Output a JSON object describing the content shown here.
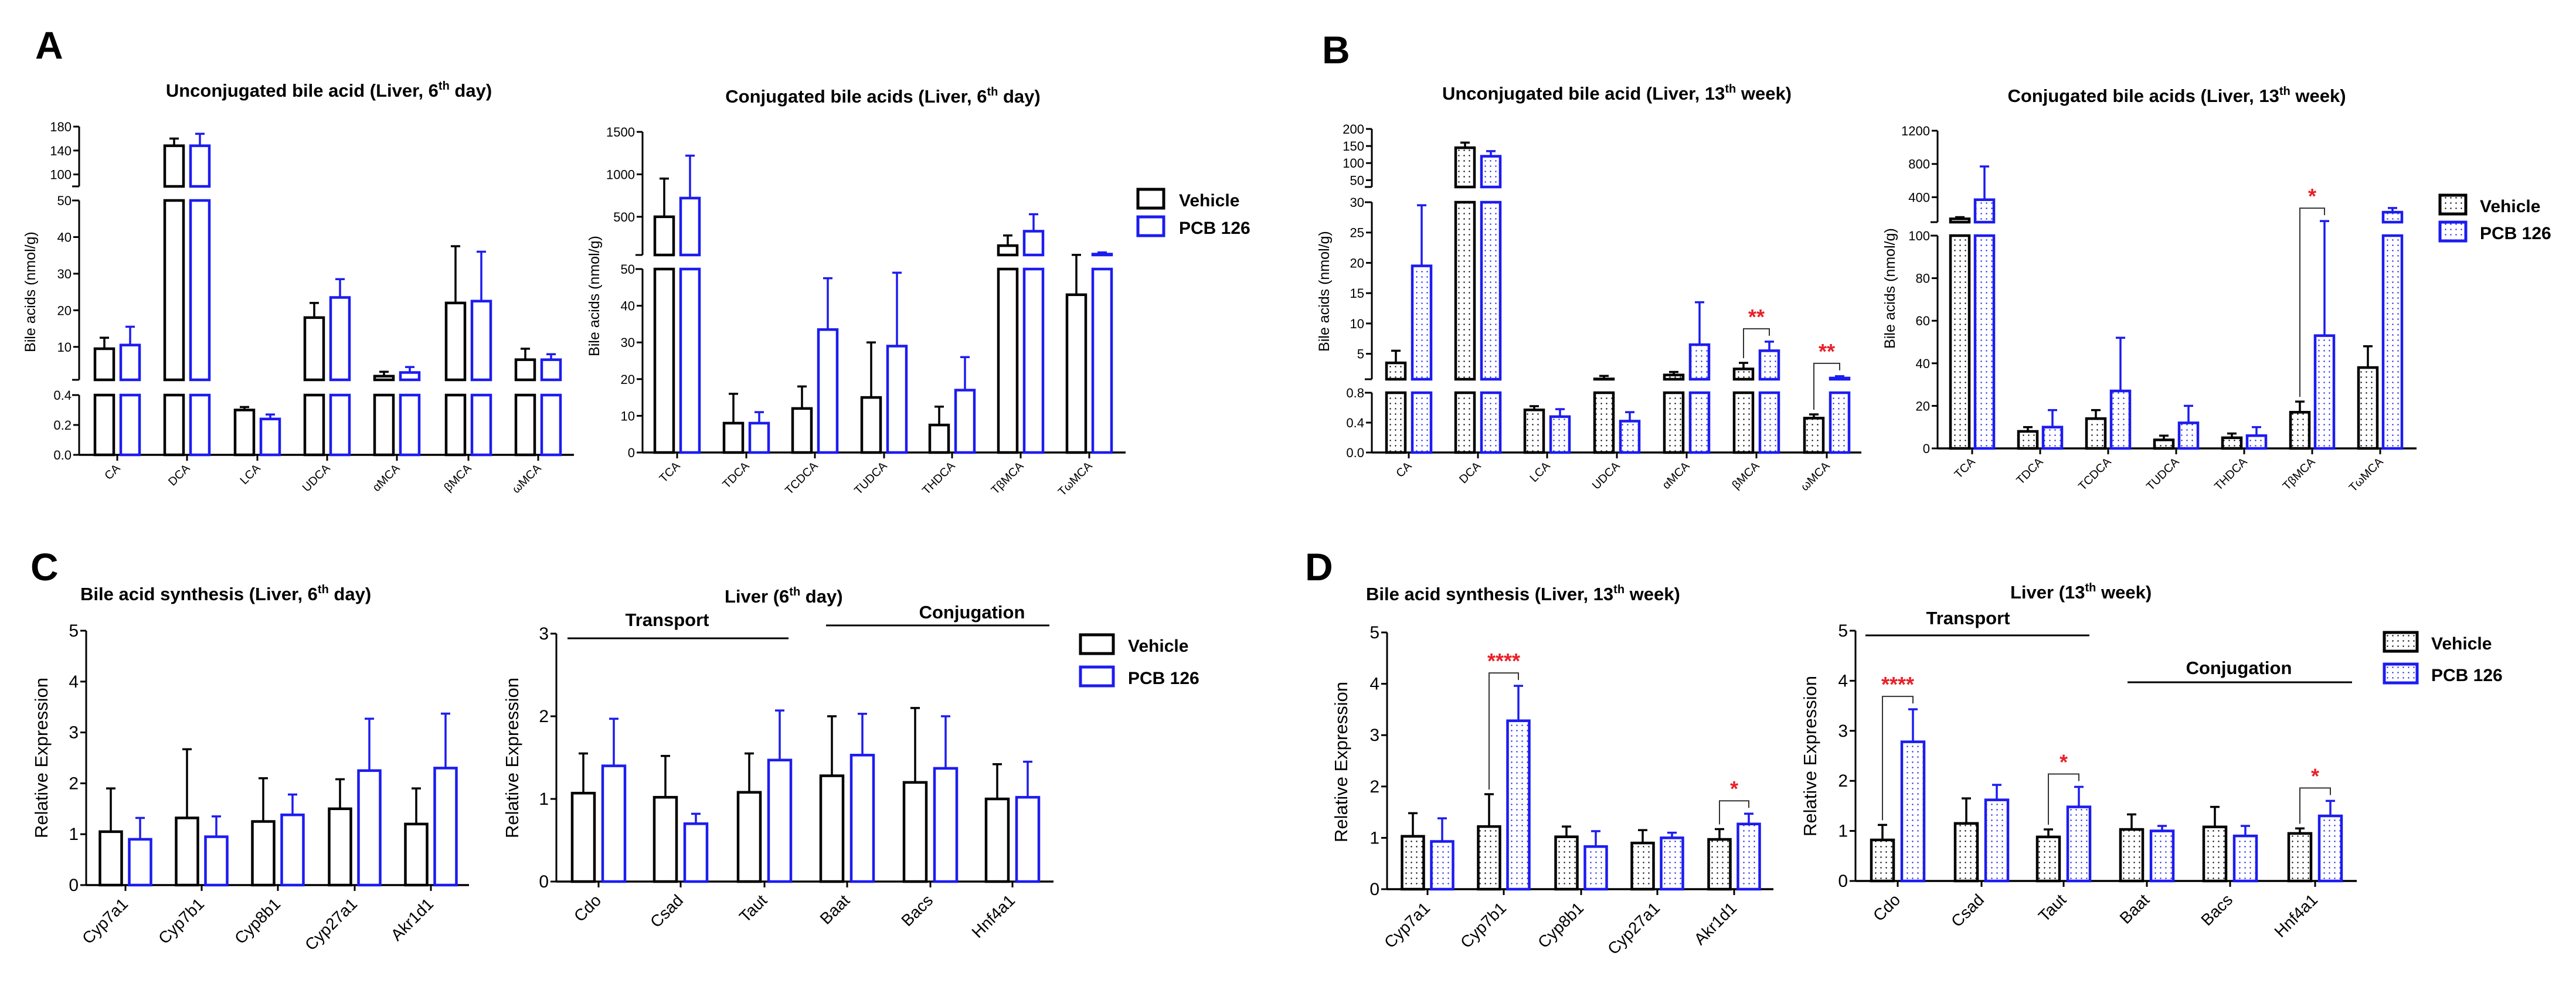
{
  "panel_letters": [
    "A",
    "B",
    "C",
    "D"
  ],
  "colors": {
    "vehicle": "#000000",
    "pcb": "#1c1cf0",
    "significance": "#e8202a"
  },
  "legend": [
    "Vehicle",
    "PCB 126"
  ],
  "chart_data": [
    {
      "id": "A1",
      "type": "bar",
      "panel": "A",
      "title": {
        "pre": "Unconjugated bile acid (Liver, 6",
        "sup": "th",
        "post": " day)"
      },
      "ylabel": "Bile acids (nmol/g)",
      "categories": [
        "CA",
        "DCA",
        "LCA",
        "UDCA",
        "αMCA",
        "βMCA",
        "ωMCA"
      ],
      "series": [
        {
          "name": "Vehicle",
          "mean": [
            9.5,
            148,
            0.3,
            18,
            2,
            22,
            6.5
          ],
          "sd": [
            3,
            12,
            0.02,
            4,
            1.2,
            15.5,
            3
          ]
        },
        {
          "name": "PCB 126",
          "mean": [
            10.5,
            148,
            0.24,
            23.5,
            3,
            22.5,
            6.5
          ],
          "sd": [
            5,
            20,
            0.03,
            5,
            1.5,
            13.5,
            1.5
          ]
        }
      ],
      "y_segments": [
        {
          "range": [
            0,
            0.4
          ],
          "ticks": [
            "0.0",
            "0.2",
            "0.4"
          ]
        },
        {
          "range": [
            1,
            50
          ],
          "ticks": [
            "10",
            "20",
            "30",
            "40",
            "50"
          ]
        },
        {
          "range": [
            80,
            180
          ],
          "ticks": [
            "100",
            "140",
            "180"
          ]
        }
      ],
      "pattern": "none",
      "legend": false,
      "significance": []
    },
    {
      "id": "A2",
      "type": "bar",
      "panel": "A",
      "title": {
        "pre": "Conjugated bile acids (Liver, 6",
        "sup": "th",
        "post": " day)"
      },
      "ylabel": "Bile acids (nmol/g)",
      "categories": [
        "TCA",
        "TDCA",
        "TCDCA",
        "TUDCA",
        "THDCA",
        "TβMCA",
        "TωMCA"
      ],
      "series": [
        {
          "name": "Vehicle",
          "mean": [
            500,
            8,
            12,
            15,
            7.5,
            160,
            43
          ],
          "sd": [
            450,
            8,
            6,
            15,
            5,
            120,
            8
          ]
        },
        {
          "name": "PCB 126",
          "mean": [
            720,
            8,
            33.5,
            29,
            17,
            330,
            60
          ],
          "sd": [
            500,
            3,
            14,
            20,
            9,
            200,
            20
          ]
        }
      ],
      "y_segments": [
        {
          "range": [
            0,
            50
          ],
          "ticks": [
            "0",
            "10",
            "20",
            "30",
            "40",
            "50"
          ]
        },
        {
          "range": [
            50,
            1500
          ],
          "ticks": [
            "500",
            "1000",
            "1500"
          ]
        }
      ],
      "pattern": "none",
      "legend": true,
      "significance": []
    },
    {
      "id": "B1",
      "type": "bar",
      "panel": "B",
      "title": {
        "pre": "Unconjugated bile acid (Liver, 13",
        "sup": "th",
        "post": " week)"
      },
      "ylabel": "Bile acids (nmol/g)",
      "categories": [
        "CA",
        "DCA",
        "LCA",
        "UDCA",
        "αMCA",
        "βMCA",
        "ωMCA"
      ],
      "series": [
        {
          "name": "Vehicle",
          "mean": [
            3.5,
            145,
            0.57,
            0.85,
            1.5,
            2.5,
            0.46
          ],
          "sd": [
            2,
            15,
            0.05,
            0.5,
            0.5,
            1,
            0.05
          ]
        },
        {
          "name": "PCB 126",
          "mean": [
            19.5,
            120,
            0.48,
            0.42,
            6.5,
            5.5,
            1.0
          ],
          "sd": [
            10,
            15,
            0.1,
            0.12,
            7,
            1.5,
            0.3
          ]
        }
      ],
      "y_segments": [
        {
          "range": [
            0,
            0.8
          ],
          "ticks": [
            "0.0",
            "0.4",
            "0.8"
          ]
        },
        {
          "range": [
            0.8,
            30
          ],
          "ticks": [
            "5",
            "10",
            "15",
            "20",
            "25",
            "30"
          ]
        },
        {
          "range": [
            30,
            200
          ],
          "ticks": [
            "50",
            "100",
            "150",
            "200"
          ]
        }
      ],
      "pattern": "dotted",
      "legend": false,
      "significance": [
        {
          "category": "βMCA",
          "label": "**"
        },
        {
          "category": "ωMCA",
          "label": "**"
        }
      ]
    },
    {
      "id": "B2",
      "type": "bar",
      "panel": "B",
      "title": {
        "pre": "Conjugated bile acids (Liver, 13",
        "sup": "th",
        "post": " week)"
      },
      "ylabel": "Bile acids (nmol/g)",
      "categories": [
        "TCA",
        "TDCA",
        "TCDCA",
        "TUDCA",
        "THDCA",
        "TβMCA",
        "TωMCA"
      ],
      "series": [
        {
          "name": "Vehicle",
          "mean": [
            140,
            8,
            14,
            4,
            5,
            17,
            38
          ],
          "sd": [
            20,
            2,
            4,
            2,
            2,
            5,
            10
          ]
        },
        {
          "name": "PCB 126",
          "mean": [
            370,
            10,
            27,
            12,
            6,
            53,
            220
          ],
          "sd": [
            400,
            8,
            25,
            8,
            4,
            60,
            50
          ]
        }
      ],
      "y_segments": [
        {
          "range": [
            0,
            100
          ],
          "ticks": [
            "0",
            "20",
            "40",
            "60",
            "80",
            "100"
          ]
        },
        {
          "range": [
            100,
            1200
          ],
          "ticks": [
            "400",
            "800",
            "1200"
          ]
        }
      ],
      "pattern": "dotted",
      "legend": true,
      "significance": [
        {
          "category": "TβMCA",
          "label": "*"
        }
      ]
    },
    {
      "id": "C1",
      "type": "bar",
      "panel": "C",
      "title": {
        "pre": "Bile acid synthesis (Liver, 6",
        "sup": "th",
        "post": " day)"
      },
      "ylabel": "Relative Expression",
      "categories": [
        "Cyp7a1",
        "Cyp7b1",
        "Cyp8b1",
        "Cyp27a1",
        "Akr1d1"
      ],
      "series": [
        {
          "name": "Vehicle",
          "mean": [
            1.05,
            1.32,
            1.25,
            1.5,
            1.2
          ],
          "sd": [
            0.85,
            1.35,
            0.85,
            0.58,
            0.7
          ]
        },
        {
          "name": "PCB 126",
          "mean": [
            0.9,
            0.95,
            1.38,
            2.25,
            2.3
          ],
          "sd": [
            0.42,
            0.4,
            0.4,
            1.02,
            1.07
          ]
        }
      ],
      "y_segments": [
        {
          "range": [
            0,
            5
          ],
          "ticks": [
            "0",
            "1",
            "2",
            "3",
            "4",
            "5"
          ]
        }
      ],
      "pattern": "none",
      "legend": false,
      "significance": []
    },
    {
      "id": "C2",
      "type": "bar",
      "panel": "C",
      "title": {
        "pre": "Liver (6",
        "sup": "th",
        "post": " day)"
      },
      "ylabel": "Relative Expression",
      "categories": [
        "Cdo",
        "Csad",
        "Taut",
        "Baat",
        "Bacs",
        "Hnf4a1"
      ],
      "series": [
        {
          "name": "Vehicle",
          "mean": [
            1.07,
            1.02,
            1.08,
            1.28,
            1.2,
            1.0
          ],
          "sd": [
            0.48,
            0.5,
            0.47,
            0.72,
            0.9,
            0.42
          ]
        },
        {
          "name": "PCB 126",
          "mean": [
            1.4,
            0.7,
            1.47,
            1.53,
            1.37,
            1.02
          ],
          "sd": [
            0.57,
            0.12,
            0.6,
            0.5,
            0.63,
            0.43
          ]
        }
      ],
      "y_segments": [
        {
          "range": [
            0,
            3
          ],
          "ticks": [
            "0",
            "1",
            "2",
            "3"
          ]
        }
      ],
      "group_labels": [
        "Transport",
        "Conjugation"
      ],
      "pattern": "none",
      "legend": true,
      "significance": []
    },
    {
      "id": "D1",
      "type": "bar",
      "panel": "D",
      "title": {
        "pre": "Bile acid synthesis (Liver, 13",
        "sup": "th",
        "post": " week)"
      },
      "ylabel": "Relative Expression",
      "categories": [
        "Cyp7a1",
        "Cyp7b1",
        "Cyp8b1",
        "Cyp27a1",
        "Akr1d1"
      ],
      "series": [
        {
          "name": "Vehicle",
          "mean": [
            1.03,
            1.22,
            1.02,
            0.9,
            0.97
          ],
          "sd": [
            0.45,
            0.63,
            0.2,
            0.25,
            0.2
          ]
        },
        {
          "name": "PCB 126",
          "mean": [
            0.93,
            3.28,
            0.83,
            1.0,
            1.27
          ],
          "sd": [
            0.45,
            0.68,
            0.3,
            0.1,
            0.2
          ]
        }
      ],
      "y_segments": [
        {
          "range": [
            0,
            5
          ],
          "ticks": [
            "0",
            "1",
            "2",
            "3",
            "4",
            "5"
          ]
        }
      ],
      "pattern": "dotted",
      "legend": false,
      "significance": [
        {
          "category": "Cyp7b1",
          "label": "****"
        },
        {
          "category": "Akr1d1",
          "label": "*"
        }
      ]
    },
    {
      "id": "D2",
      "type": "bar",
      "panel": "D",
      "title": {
        "pre": "Liver (13",
        "sup": "th",
        "post": " week)"
      },
      "ylabel": "Relative Expression",
      "categories": [
        "Cdo",
        "Csad",
        "Taut",
        "Baat",
        "Bacs",
        "Hnf4a1"
      ],
      "series": [
        {
          "name": "Vehicle",
          "mean": [
            0.82,
            1.15,
            0.88,
            1.03,
            1.08,
            0.95
          ],
          "sd": [
            0.3,
            0.5,
            0.15,
            0.3,
            0.4,
            0.1
          ]
        },
        {
          "name": "PCB 126",
          "mean": [
            2.78,
            1.62,
            1.48,
            1.0,
            0.9,
            1.3
          ],
          "sd": [
            0.65,
            0.3,
            0.4,
            0.1,
            0.2,
            0.3
          ]
        }
      ],
      "y_segments": [
        {
          "range": [
            0,
            5
          ],
          "ticks": [
            "0",
            "1",
            "2",
            "3",
            "4",
            "5"
          ]
        }
      ],
      "group_labels": [
        "Transport",
        "Conjugation"
      ],
      "pattern": "dotted",
      "legend": true,
      "significance": [
        {
          "category": "Cdo",
          "label": "****"
        },
        {
          "category": "Taut",
          "label": "*"
        },
        {
          "category": "Hnf4a1",
          "label": "*"
        }
      ]
    }
  ]
}
